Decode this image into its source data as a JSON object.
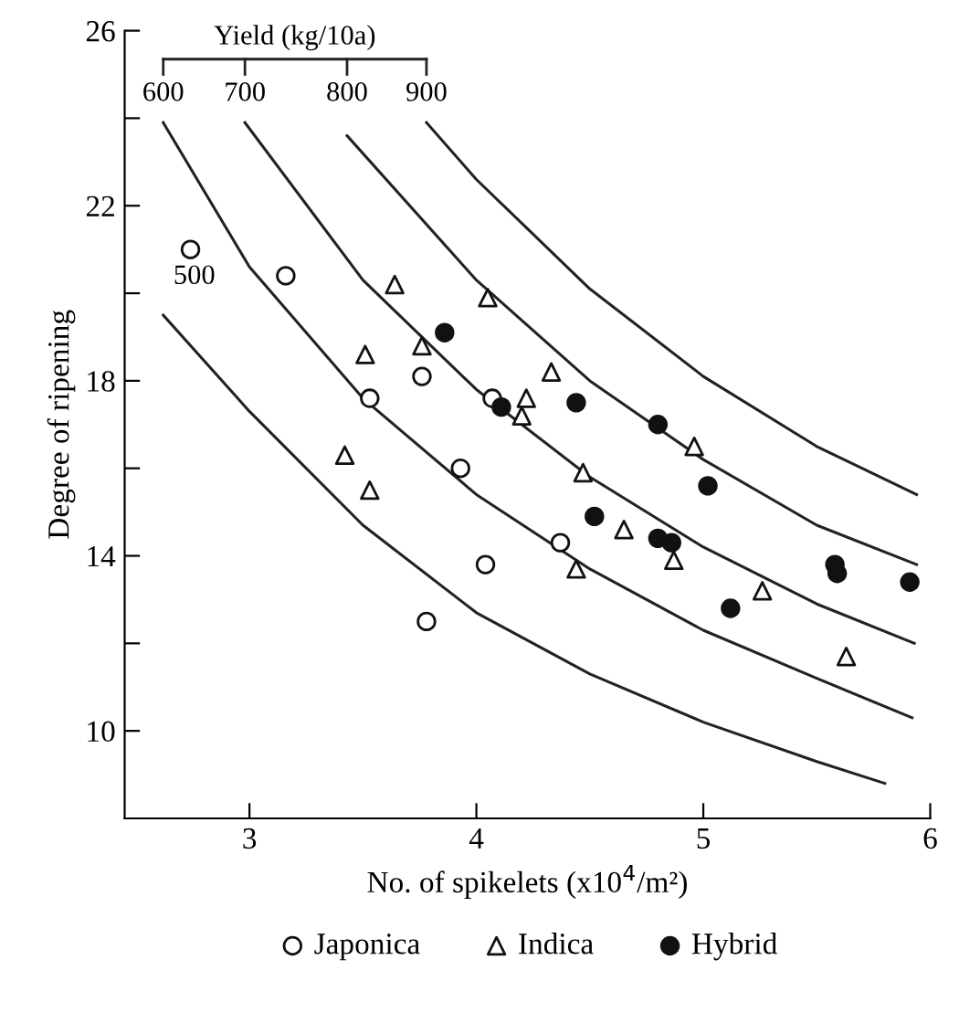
{
  "chart_data": {
    "type": "scatter",
    "xlabel": "No. of spikelets (x10$^{4}$/m²)",
    "ylabel": "Degree of ripening",
    "annotations": [
      "Yield (kg/10a)",
      {
        "text": "500",
        "x": 2.62,
        "y": 19.5
      },
      {
        "text": "600",
        "x": 2.62,
        "y": 23.9
      },
      {
        "text": "700",
        "x": 2.98,
        "y": 23.9
      },
      {
        "text": "800",
        "x": 3.43,
        "y": 23.6
      },
      {
        "text": "900",
        "x": 3.78,
        "y": 23.9
      }
    ],
    "xlim": [
      2.45,
      6.0
    ],
    "xticks": [
      3,
      4,
      5,
      6
    ],
    "ylim": [
      8,
      26
    ],
    "yticks": [
      {
        "value": 10,
        "label": "10"
      },
      {
        "value": 12,
        "label": null
      },
      {
        "value": 14,
        "label": "14"
      },
      {
        "value": 16,
        "label": null
      },
      {
        "value": 18,
        "label": "18"
      },
      {
        "value": 20,
        "label": null
      },
      {
        "value": 22,
        "label": "22"
      },
      {
        "value": 24,
        "label": null
      },
      {
        "value": 26,
        "label": "26"
      }
    ],
    "grid": false,
    "legend": "bottom",
    "series": [
      {
        "name": "Japonica",
        "marker": "circle",
        "color": "#ffffff",
        "x": [
          2.74,
          3.16,
          3.76,
          3.53,
          4.07,
          3.93,
          4.37,
          4.04,
          3.78
        ],
        "values": [
          21.0,
          20.4,
          18.1,
          17.6,
          17.6,
          16.0,
          14.3,
          13.8,
          12.5
        ]
      },
      {
        "name": "Indica",
        "marker": "triangle",
        "color": "#ffffff",
        "x": [
          3.64,
          4.05,
          3.76,
          3.51,
          4.33,
          4.22,
          4.2,
          3.42,
          3.53,
          4.47,
          4.96,
          4.65,
          4.44,
          4.87,
          5.26,
          5.63
        ],
        "values": [
          20.2,
          19.9,
          18.8,
          18.6,
          18.2,
          17.6,
          17.2,
          16.3,
          15.5,
          15.9,
          16.5,
          14.6,
          13.7,
          13.9,
          13.2,
          11.7
        ]
      },
      {
        "name": "Hybrid",
        "marker": "circle",
        "color": "#111111",
        "x": [
          3.86,
          4.11,
          4.44,
          4.8,
          5.02,
          4.52,
          4.8,
          4.86,
          5.12,
          5.58,
          5.59,
          5.91
        ],
        "values": [
          19.1,
          17.4,
          17.5,
          17.0,
          15.6,
          14.9,
          14.4,
          14.3,
          12.8,
          13.8,
          13.6,
          13.4
        ]
      },
      {
        "type": "line",
        "marker": "none",
        "color": "#222222",
        "x": [
          2.62,
          3.0,
          3.5,
          4.0,
          4.5,
          5.0,
          5.5,
          5.8
        ],
        "values": [
          19.5,
          17.3,
          14.7,
          12.7,
          11.3,
          10.2,
          9.3,
          8.8
        ]
      },
      {
        "type": "line",
        "marker": "none",
        "color": "#222222",
        "x": [
          2.62,
          3.0,
          3.5,
          4.0,
          4.5,
          5.0,
          5.5,
          5.92
        ],
        "values": [
          23.9,
          20.6,
          17.6,
          15.4,
          13.7,
          12.3,
          11.2,
          10.3
        ]
      },
      {
        "type": "line",
        "marker": "none",
        "color": "#222222",
        "x": [
          2.98,
          3.5,
          4.0,
          4.5,
          5.0,
          5.5,
          5.93
        ],
        "values": [
          23.9,
          20.3,
          17.8,
          15.8,
          14.2,
          12.9,
          12.0
        ]
      },
      {
        "type": "line",
        "marker": "none",
        "color": "#222222",
        "x": [
          3.43,
          4.0,
          4.5,
          5.0,
          5.5,
          5.94
        ],
        "values": [
          23.6,
          20.3,
          18.0,
          16.2,
          14.7,
          13.8
        ]
      },
      {
        "type": "line",
        "marker": "none",
        "color": "#222222",
        "x": [
          3.78,
          4.0,
          4.5,
          5.0,
          5.5,
          5.94
        ],
        "values": [
          23.9,
          22.6,
          20.1,
          18.1,
          16.5,
          15.4
        ]
      }
    ]
  }
}
